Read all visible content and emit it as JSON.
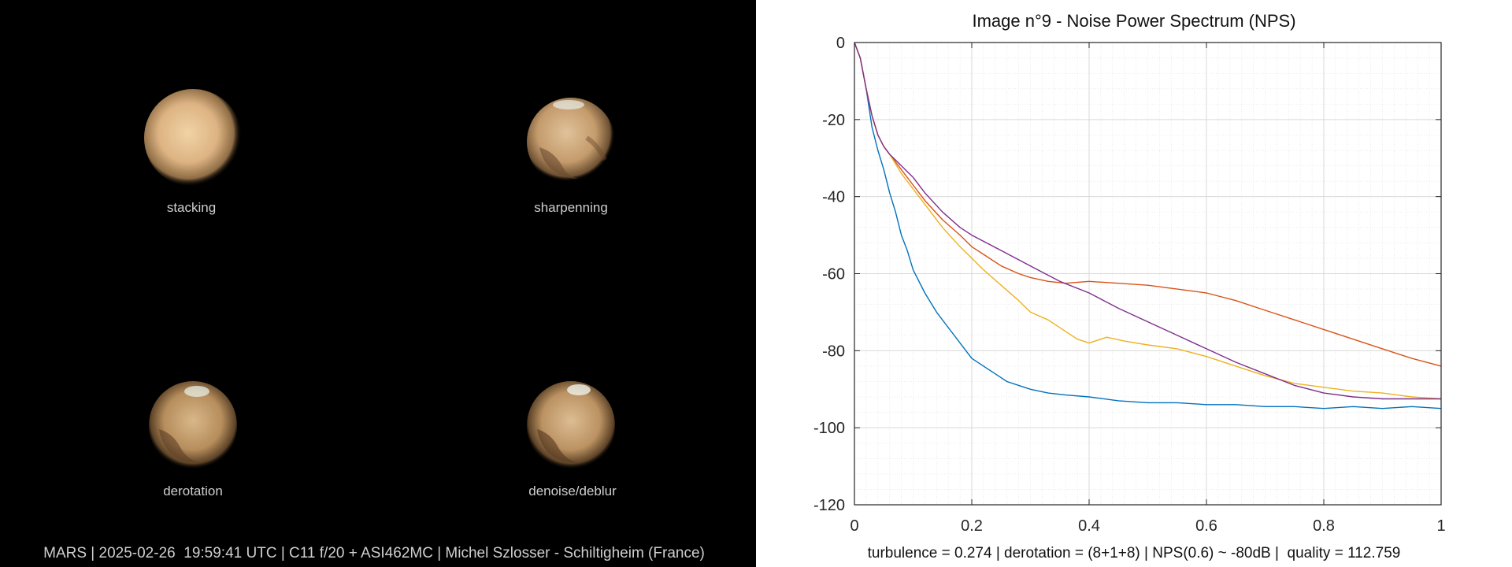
{
  "left": {
    "panels": [
      {
        "label": "stacking"
      },
      {
        "label": "sharpenning"
      },
      {
        "label": "derotation"
      },
      {
        "label": "denoise/deblur"
      }
    ],
    "caption": "MARS | 2025-02-26  19:59:41 UTC | C11 f/20 + ASI462MC | Michel Szlosser - Schiltigheim (France)"
  },
  "chart_data": {
    "type": "line",
    "title": "Image n°9 - Noise Power Spectrum (NPS)",
    "xlabel": "",
    "ylabel": "",
    "xlim": [
      0,
      1
    ],
    "ylim": [
      -120,
      0
    ],
    "xticks": [
      0,
      0.2,
      0.4,
      0.6,
      0.8,
      1
    ],
    "yticks": [
      0,
      -20,
      -40,
      -60,
      -80,
      -100,
      -120
    ],
    "xtick_labels": [
      "0",
      "0.2",
      "0.4",
      "0.6",
      "0.8",
      "1"
    ],
    "ytick_labels": [
      "0",
      "-20",
      "-40",
      "-60",
      "-80",
      "-100",
      "-120"
    ],
    "grid": true,
    "footer": "turbulence = 0.274 | derotation = (8+1+8) | NPS(0.6) ~ -80dB |  quality = 112.759",
    "series": [
      {
        "color": "#0072BD",
        "x": [
          0,
          0.01,
          0.02,
          0.03,
          0.04,
          0.05,
          0.06,
          0.07,
          0.08,
          0.09,
          0.1,
          0.12,
          0.14,
          0.16,
          0.18,
          0.2,
          0.22,
          0.24,
          0.26,
          0.28,
          0.3,
          0.33,
          0.36,
          0.4,
          0.45,
          0.5,
          0.55,
          0.6,
          0.65,
          0.7,
          0.75,
          0.8,
          0.85,
          0.9,
          0.95,
          1.0
        ],
        "y": [
          0,
          -4,
          -12,
          -22,
          -28,
          -33,
          -39,
          -44,
          -50,
          -54,
          -59,
          -65,
          -70,
          -74,
          -78,
          -82,
          -84,
          -86,
          -88,
          -89,
          -90,
          -91,
          -91.5,
          -92,
          -93,
          -93.5,
          -93.5,
          -94,
          -94,
          -94.5,
          -94.5,
          -95,
          -94.5,
          -95,
          -94.5,
          -95
        ]
      },
      {
        "color": "#D95319",
        "x": [
          0,
          0.01,
          0.02,
          0.03,
          0.04,
          0.05,
          0.06,
          0.08,
          0.1,
          0.12,
          0.15,
          0.18,
          0.2,
          0.22,
          0.25,
          0.28,
          0.3,
          0.33,
          0.36,
          0.4,
          0.45,
          0.5,
          0.55,
          0.6,
          0.65,
          0.7,
          0.75,
          0.8,
          0.85,
          0.9,
          0.95,
          1.0
        ],
        "y": [
          0,
          -4,
          -12,
          -19,
          -24,
          -27,
          -29,
          -33,
          -37,
          -41,
          -46,
          -50,
          -53,
          -55,
          -58,
          -60,
          -61,
          -62,
          -62.5,
          -62,
          -62.5,
          -63,
          -64,
          -65,
          -67,
          -69.5,
          -72,
          -74.5,
          -77,
          -79.5,
          -82,
          -84
        ]
      },
      {
        "color": "#EDB120",
        "x": [
          0,
          0.01,
          0.02,
          0.03,
          0.04,
          0.05,
          0.06,
          0.08,
          0.1,
          0.12,
          0.15,
          0.18,
          0.2,
          0.22,
          0.25,
          0.28,
          0.3,
          0.33,
          0.36,
          0.38,
          0.4,
          0.43,
          0.46,
          0.5,
          0.55,
          0.6,
          0.65,
          0.7,
          0.75,
          0.8,
          0.85,
          0.9,
          0.95,
          1.0
        ],
        "y": [
          0,
          -4,
          -12,
          -19,
          -24,
          -27,
          -29,
          -34,
          -38,
          -42,
          -48,
          -53,
          -56,
          -59,
          -63,
          -67,
          -70,
          -72,
          -75,
          -77,
          -78,
          -76.5,
          -77.5,
          -78.5,
          -79.5,
          -81.5,
          -84,
          -86.5,
          -88.5,
          -89.5,
          -90.5,
          -91,
          -92,
          -92.5
        ]
      },
      {
        "color": "#7E2F8E",
        "x": [
          0,
          0.01,
          0.02,
          0.03,
          0.04,
          0.05,
          0.06,
          0.08,
          0.1,
          0.12,
          0.15,
          0.18,
          0.2,
          0.25,
          0.3,
          0.35,
          0.4,
          0.45,
          0.5,
          0.55,
          0.6,
          0.65,
          0.7,
          0.75,
          0.8,
          0.85,
          0.9,
          0.95,
          1.0
        ],
        "y": [
          0,
          -4,
          -12,
          -19,
          -24,
          -27,
          -29,
          -32,
          -35,
          -39,
          -44,
          -48,
          -50,
          -54,
          -58,
          -62,
          -65,
          -69,
          -72.5,
          -76,
          -79.5,
          -83,
          -86,
          -89,
          -91,
          -92,
          -92.5,
          -92.5,
          -92.5
        ]
      }
    ]
  }
}
